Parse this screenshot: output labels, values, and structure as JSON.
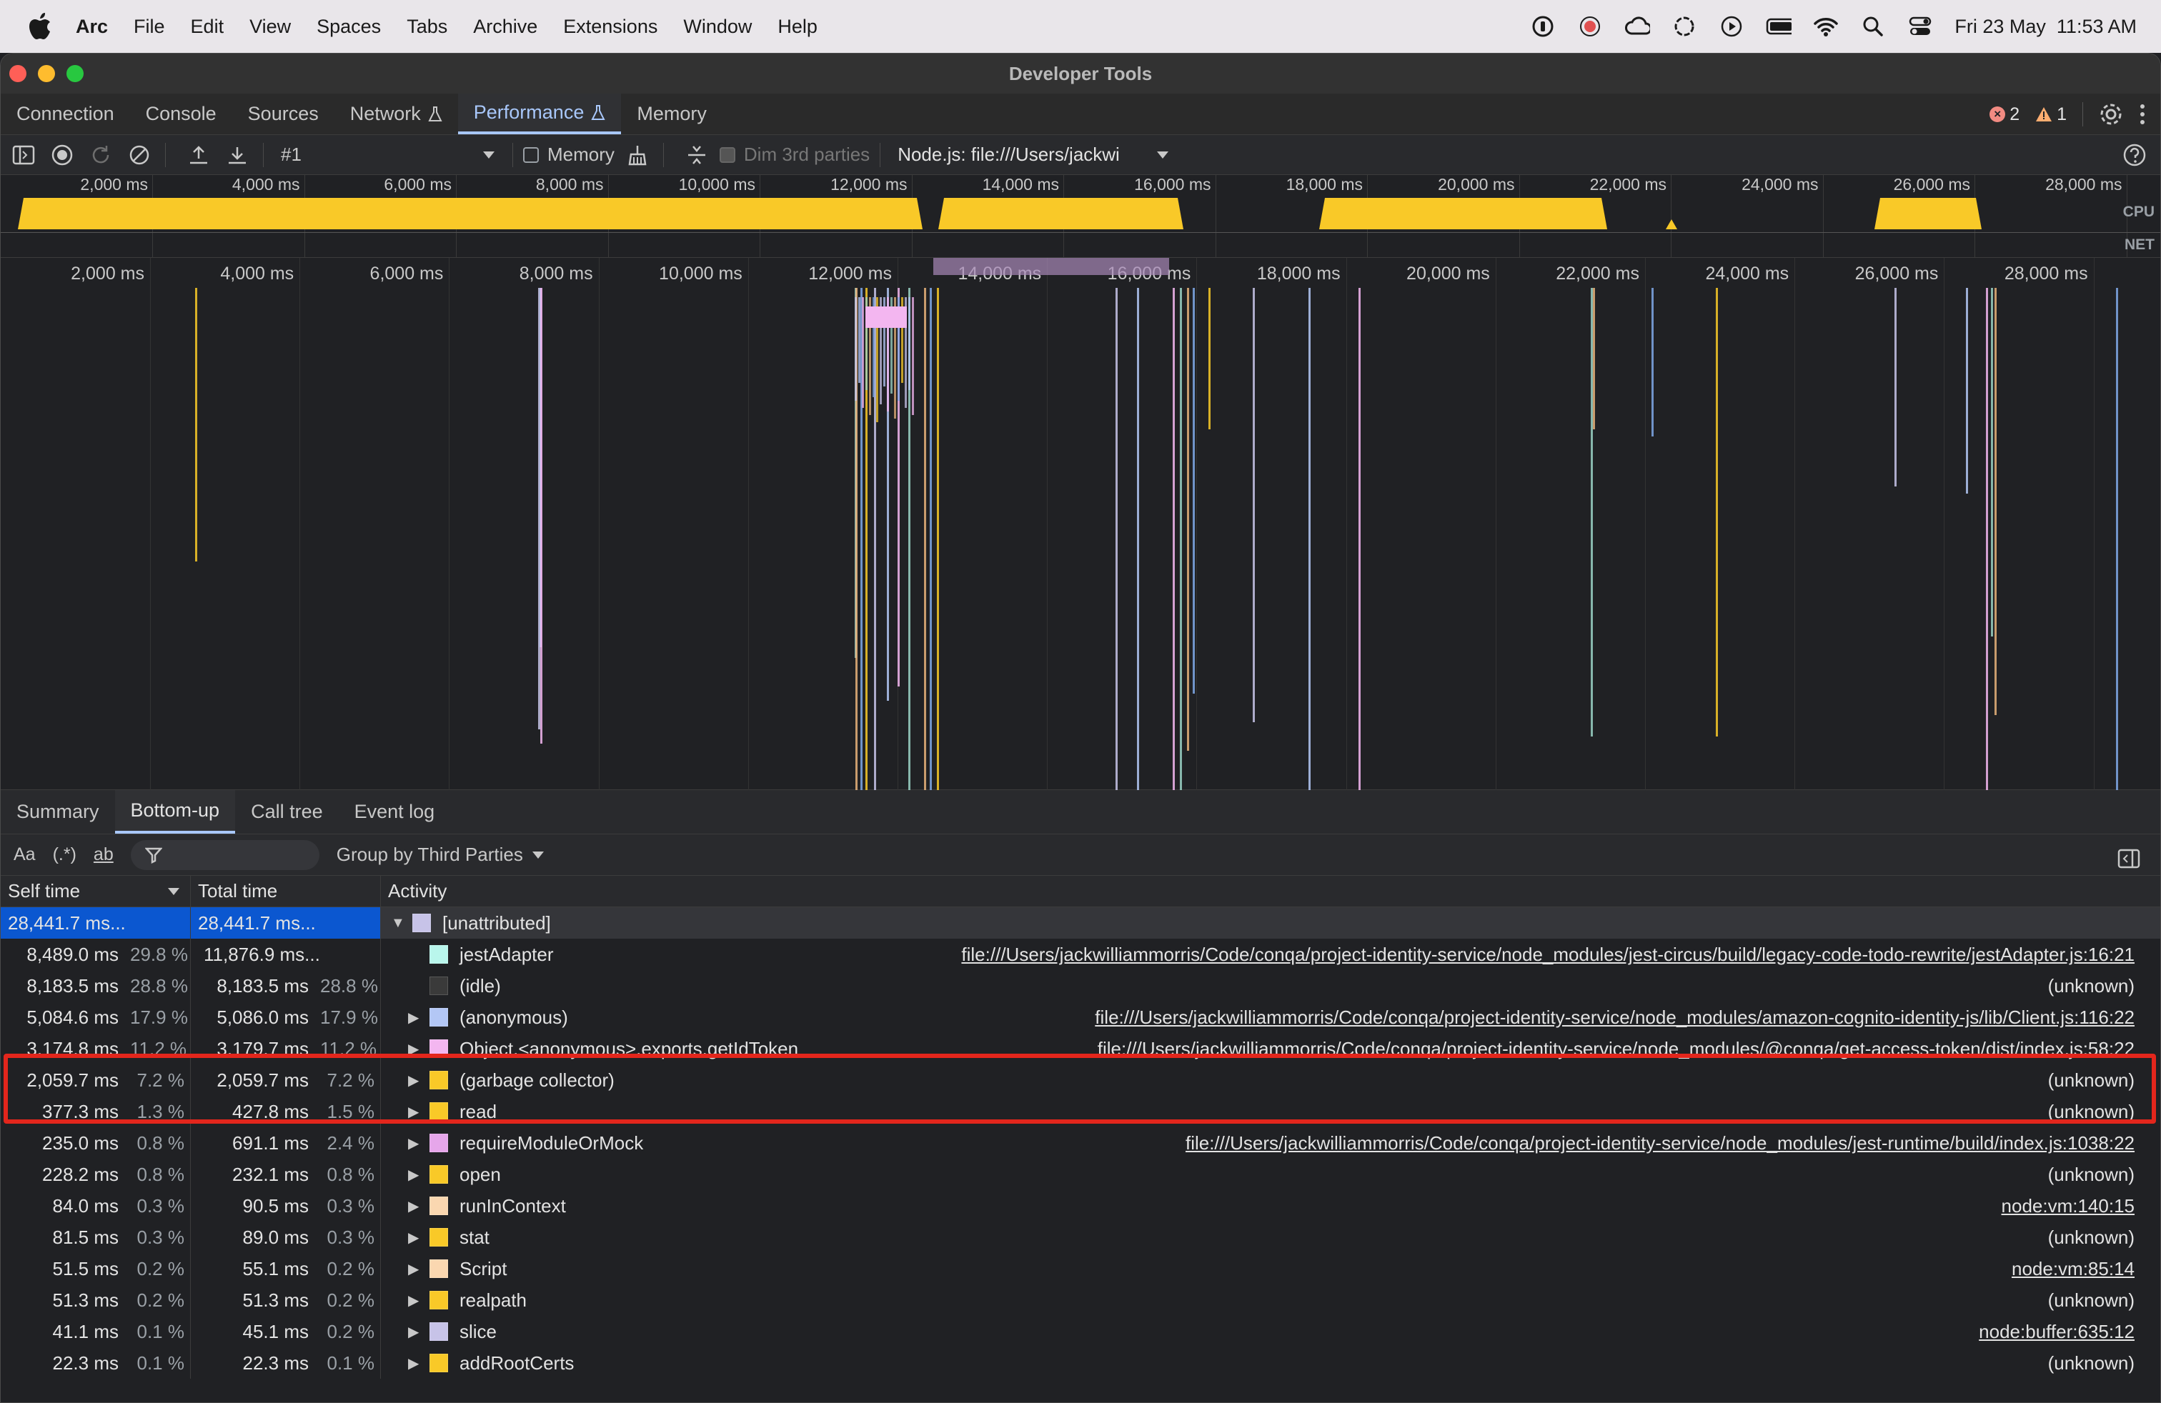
{
  "menubar": {
    "app": "Arc",
    "items": [
      "File",
      "Edit",
      "View",
      "Spaces",
      "Tabs",
      "Archive",
      "Extensions",
      "Window",
      "Help"
    ],
    "datetime": "Fri 23 May  11:53 AM"
  },
  "window": {
    "title": "Developer Tools"
  },
  "devtools_tabs": [
    {
      "label": "Connection"
    },
    {
      "label": "Console"
    },
    {
      "label": "Sources"
    },
    {
      "label": "Network"
    },
    {
      "label": "Performance"
    },
    {
      "label": "Memory"
    }
  ],
  "issues": {
    "errors": "2",
    "warnings": "1"
  },
  "toolbar": {
    "recording": "#1",
    "memory_label": "Memory",
    "dim_label": "Dim 3rd parties",
    "target": "Node.js: file:///Users/jackwi"
  },
  "overview": {
    "ticks": [
      "2,000 ms",
      "4,000 ms",
      "6,000 ms",
      "8,000 ms",
      "10,000 ms",
      "12,000 ms",
      "14,000 ms",
      "16,000 ms",
      "18,000 ms",
      "20,000 ms",
      "22,000 ms",
      "24,000 ms",
      "26,000 ms",
      "28,000 ms"
    ],
    "cpu_label": "CPU",
    "net_label": "NET"
  },
  "timeline": {
    "ticks": [
      "2,000 ms",
      "4,000 ms",
      "6,000 ms",
      "8,000 ms",
      "10,000 ms",
      "12,000 ms",
      "14,000 ms",
      "16,000 ms",
      "18,000 ms",
      "20,000 ms",
      "22,000 ms",
      "24,000 ms",
      "26,000 ms",
      "28,000 ms"
    ]
  },
  "bottom_tabs": [
    {
      "label": "Summary"
    },
    {
      "label": "Bottom-up"
    },
    {
      "label": "Call tree"
    },
    {
      "label": "Event log"
    }
  ],
  "filterbar": {
    "case_label": "Aa",
    "regex_label": "(.*)",
    "word_label": "ab",
    "group_label": "Group by Third Parties"
  },
  "table": {
    "headers": {
      "self": "Self time",
      "total": "Total time",
      "activity": "Activity"
    },
    "rows": [
      {
        "self_ms": "28,441.7 ms...",
        "self_pct": "",
        "total_ms": "28,441.7 ms...",
        "total_pct": "",
        "name": "[unattributed]",
        "url": "",
        "color": "#c7c3e8",
        "expander": "▼"
      },
      {
        "self_ms": "8,489.0 ms",
        "self_pct": "29.8 %",
        "total_ms": "11,876.9 ms...",
        "total_pct": "",
        "name": "jestAdapter",
        "url": "file:///Users/jackwilliammorris/Code/conqa/project-identity-service/node_modules/jest-circus/build/legacy-code-todo-rewrite/jestAdapter.js:16:21",
        "color": "#b9f6ec",
        "expander": ""
      },
      {
        "self_ms": "8,183.5 ms",
        "self_pct": "28.8 %",
        "total_ms": "8,183.5 ms",
        "total_pct": "28.8 %",
        "name": "(idle)",
        "url": "(unknown)",
        "color": "#3a3a3a",
        "expander": ""
      },
      {
        "self_ms": "5,084.6 ms",
        "self_pct": "17.9 %",
        "total_ms": "5,086.0 ms",
        "total_pct": "17.9 %",
        "name": "(anonymous)",
        "url": "file:///Users/jackwilliammorris/Code/conqa/project-identity-service/node_modules/amazon-cognito-identity-js/lib/Client.js:116:22",
        "color": "#b3c7f5",
        "expander": "▶"
      },
      {
        "self_ms": "3,174.8 ms",
        "self_pct": "11.2 %",
        "total_ms": "3,179.7 ms",
        "total_pct": "11.2 %",
        "name": "Object.<anonymous>.exports.getIdToken",
        "url": "file:///Users/jackwilliammorris/Code/conqa/project-identity-service/node_modules/@conqa/get-access-token/dist/index.js:58:22",
        "color": "#f3b6f0",
        "expander": "▶"
      },
      {
        "self_ms": "2,059.7 ms",
        "self_pct": "7.2 %",
        "total_ms": "2,059.7 ms",
        "total_pct": "7.2 %",
        "name": "(garbage collector)",
        "url": "(unknown)",
        "color": "#f9c928",
        "expander": "▶"
      },
      {
        "self_ms": "377.3 ms",
        "self_pct": "1.3 %",
        "total_ms": "427.8 ms",
        "total_pct": "1.5 %",
        "name": "read",
        "url": "(unknown)",
        "color": "#f9c928",
        "expander": "▶"
      },
      {
        "self_ms": "235.0 ms",
        "self_pct": "0.8 %",
        "total_ms": "691.1 ms",
        "total_pct": "2.4 %",
        "name": "requireModuleOrMock",
        "url": "file:///Users/jackwilliammorris/Code/conqa/project-identity-service/node_modules/jest-runtime/build/index.js:1038:22",
        "color": "#e6a6ea",
        "expander": "▶"
      },
      {
        "self_ms": "228.2 ms",
        "self_pct": "0.8 %",
        "total_ms": "232.1 ms",
        "total_pct": "0.8 %",
        "name": "open",
        "url": "(unknown)",
        "color": "#f9c928",
        "expander": "▶"
      },
      {
        "self_ms": "84.0 ms",
        "self_pct": "0.3 %",
        "total_ms": "90.5 ms",
        "total_pct": "0.3 %",
        "name": "runInContext",
        "url": "node:vm:140:15",
        "color": "#fad7b0",
        "expander": "▶"
      },
      {
        "self_ms": "81.5 ms",
        "self_pct": "0.3 %",
        "total_ms": "89.0 ms",
        "total_pct": "0.3 %",
        "name": "stat",
        "url": "(unknown)",
        "color": "#f9c928",
        "expander": "▶"
      },
      {
        "self_ms": "51.5 ms",
        "self_pct": "0.2 %",
        "total_ms": "55.1 ms",
        "total_pct": "0.2 %",
        "name": "Script",
        "url": "node:vm:85:14",
        "color": "#fad7b0",
        "expander": "▶"
      },
      {
        "self_ms": "51.3 ms",
        "self_pct": "0.2 %",
        "total_ms": "51.3 ms",
        "total_pct": "0.2 %",
        "name": "realpath",
        "url": "(unknown)",
        "color": "#f9c928",
        "expander": "▶"
      },
      {
        "self_ms": "41.1 ms",
        "self_pct": "0.1 %",
        "total_ms": "45.1 ms",
        "total_pct": "0.2 %",
        "name": "slice",
        "url": "node:buffer:635:12",
        "color": "#c7c3e8",
        "expander": "▶"
      },
      {
        "self_ms": "22.3 ms",
        "self_pct": "0.1 %",
        "total_ms": "22.3 ms",
        "total_pct": "0.1 %",
        "name": "addRootCerts",
        "url": "(unknown)",
        "color": "#f9c928",
        "expander": "▶"
      }
    ]
  },
  "colors": {
    "accent": "#a8c7fa",
    "cpu": "#f9c928",
    "highlight": "#e3261c",
    "selection": "#0b57d0"
  }
}
